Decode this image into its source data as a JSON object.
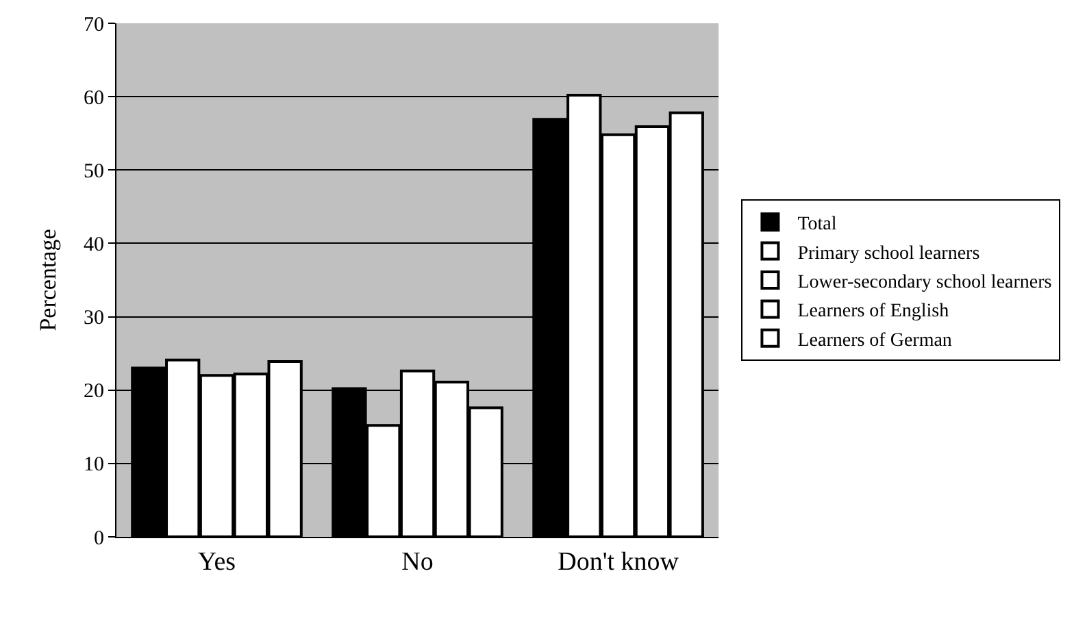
{
  "chart_data": {
    "type": "bar",
    "ylabel": "Percentage",
    "categories": [
      "Yes",
      "No",
      "Don't know"
    ],
    "series": [
      {
        "name": "Total",
        "color": "#000000",
        "values": [
          23,
          20.2,
          56.9
        ]
      },
      {
        "name": "Primary school learners",
        "color": "#ffffff",
        "values": [
          24.1,
          15.2,
          60.2
        ]
      },
      {
        "name": "Lower-secondary school learners",
        "color": "#ffffff",
        "values": [
          22,
          22.6,
          54.8
        ]
      },
      {
        "name": "Learners of English",
        "color": "#ffffff",
        "values": [
          22.2,
          21.1,
          55.9
        ]
      },
      {
        "name": "Learners of German",
        "color": "#ffffff",
        "values": [
          23.9,
          17.6,
          57.8
        ]
      }
    ],
    "ylim": [
      0,
      70
    ],
    "yticks": [
      0,
      10,
      20,
      30,
      40,
      50,
      60,
      70
    ],
    "grid": "y",
    "legend": "right"
  }
}
